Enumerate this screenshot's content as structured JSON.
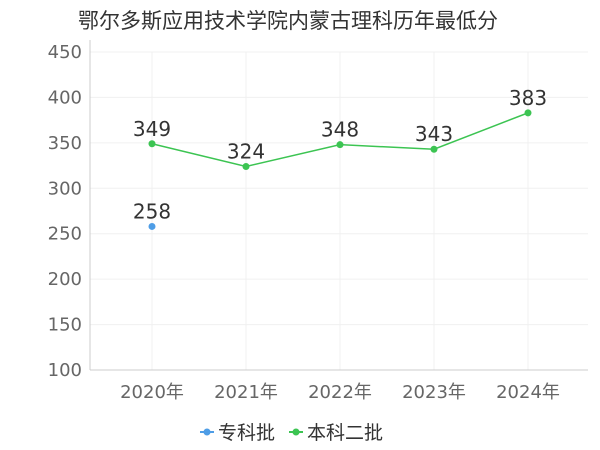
{
  "chart_data": {
    "type": "line",
    "title": "鄂尔多斯应用技术学院内蒙古理科历年最低分",
    "xlabel": "",
    "ylabel": "",
    "categories": [
      "2020年",
      "2021年",
      "2022年",
      "2023年",
      "2024年"
    ],
    "ylim": [
      100,
      450
    ],
    "yticks": [
      100,
      150,
      200,
      250,
      300,
      350,
      400,
      450
    ],
    "grid": true,
    "legend_position": "bottom",
    "series": [
      {
        "name": "专科批",
        "color": "#4e9de6",
        "values": [
          258,
          null,
          null,
          null,
          null
        ]
      },
      {
        "name": "本科二批",
        "color": "#3cc452",
        "values": [
          349,
          324,
          348,
          343,
          383
        ]
      }
    ]
  }
}
